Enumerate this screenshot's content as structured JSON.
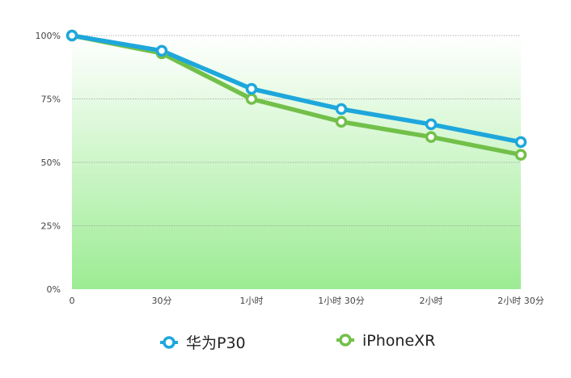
{
  "colors": {
    "series_1": "#1ea7dc",
    "series_2": "#72c04a",
    "fill_top": "#ffffff",
    "fill_bottom": "#9cec93",
    "grid": "#9a9a9a"
  },
  "chart_data": {
    "type": "line",
    "x": [
      "0",
      "30分",
      "1小时",
      "1小时 30分",
      "2小时",
      "2小时 30分"
    ],
    "ylim": [
      0,
      100
    ],
    "yticks": [
      0,
      25,
      50,
      75,
      100
    ],
    "ytick_labels": [
      "0%",
      "25%",
      "50%",
      "75%",
      "100%"
    ],
    "grid": true,
    "legend": "bottom",
    "series": [
      {
        "name": "华为P30",
        "color": "#1ea7dc",
        "values": [
          100,
          94,
          79,
          71,
          65,
          58
        ]
      },
      {
        "name": "iPhoneXR",
        "color": "#72c04a",
        "values": [
          100,
          93,
          75,
          66,
          60,
          53
        ]
      }
    ]
  }
}
